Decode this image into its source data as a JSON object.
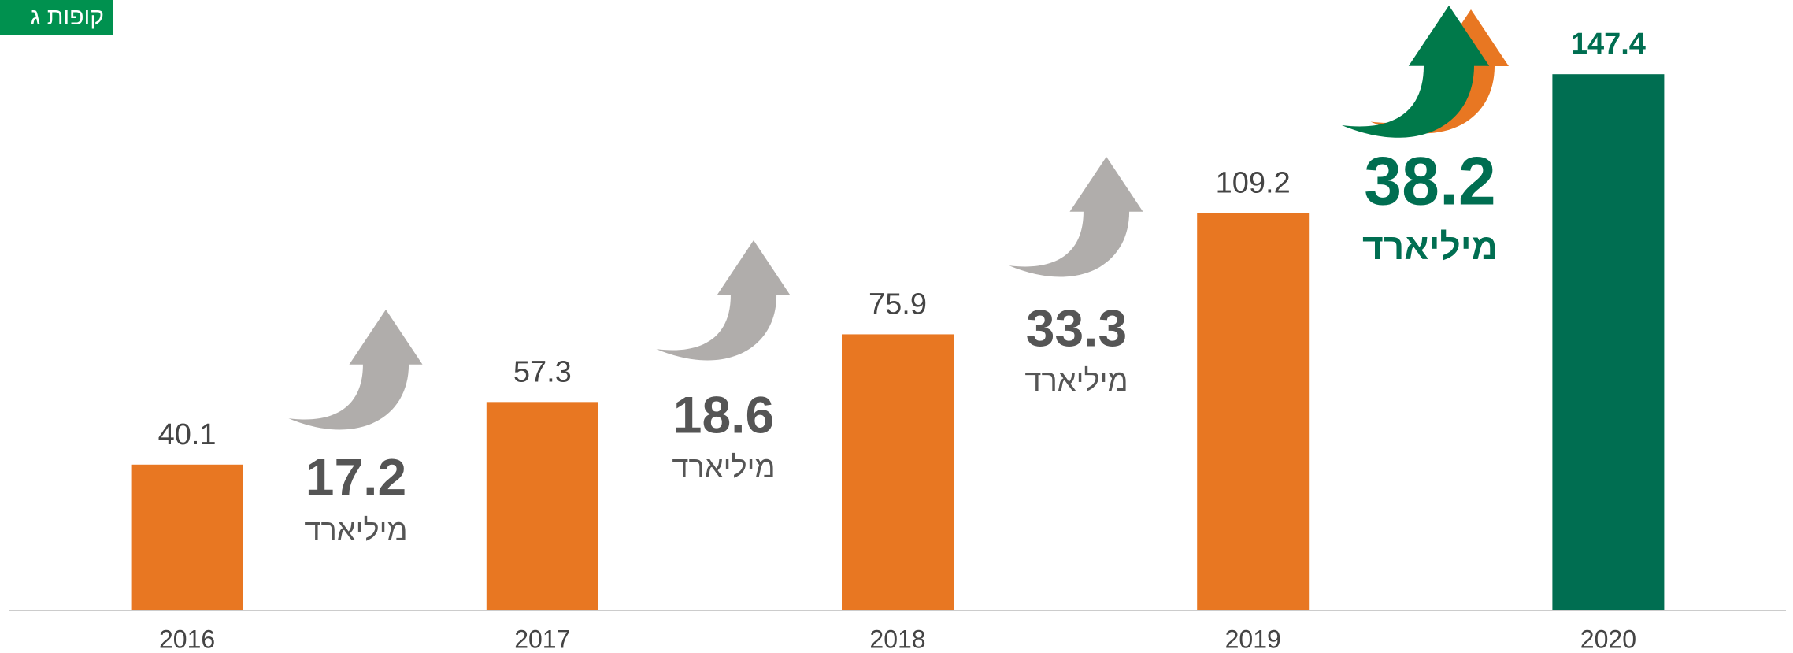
{
  "chart_data": {
    "type": "bar",
    "tag": "קופות ג",
    "categories": [
      "2016",
      "2017",
      "2018",
      "2019",
      "2020"
    ],
    "values": [
      40.1,
      57.3,
      75.9,
      109.2,
      147.4
    ],
    "colors": [
      "#e87722",
      "#e87722",
      "#e87722",
      "#e87722",
      "#006e51"
    ],
    "ylim": [
      0,
      160
    ],
    "increments": [
      17.2,
      18.6,
      33.3,
      38.2
    ],
    "increment_unit": "מיליארד"
  }
}
